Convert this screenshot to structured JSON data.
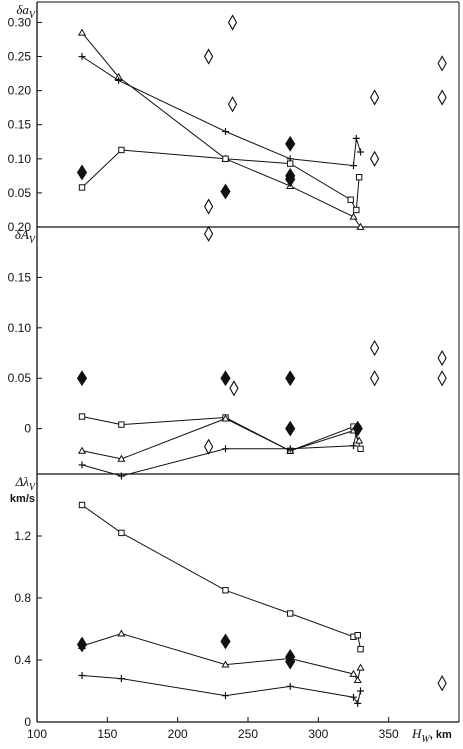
{
  "figure": {
    "x_axis": {
      "label": "H",
      "label_sub": "W",
      "unit": ", km",
      "range": [
        100,
        400
      ],
      "ticks": [
        "100",
        "150",
        "200",
        "250",
        "300",
        "350"
      ]
    },
    "colors": {
      "ink": "#111111",
      "background": "#ffffff"
    }
  },
  "chart_data": [
    {
      "type": "line",
      "ylabel": "δa",
      "ylabel_sub": "V",
      "ylabel_unit": "",
      "ylim": [
        0,
        0.33
      ],
      "yticks": [
        "0.05",
        "0.10",
        "0.15",
        "0.20",
        "0.25",
        "0.30"
      ],
      "grid": false,
      "series": [
        {
          "marker": "triangle",
          "x": [
            132,
            158,
            234,
            280,
            325,
            330
          ],
          "y": [
            0.285,
            0.22,
            0.1,
            0.06,
            0.015,
            0.0
          ]
        },
        {
          "marker": "plus",
          "x": [
            132,
            158,
            234,
            280,
            325,
            327,
            330
          ],
          "y": [
            0.25,
            0.215,
            0.14,
            0.1,
            0.09,
            0.13,
            0.11
          ]
        },
        {
          "marker": "square",
          "x": [
            132,
            160,
            234,
            280,
            323,
            327,
            329
          ],
          "y": [
            0.058,
            0.113,
            0.1,
            0.093,
            0.04,
            0.025,
            0.073
          ]
        },
        {
          "marker": "diamond-filled",
          "x": [
            132,
            234,
            280,
            280,
            280
          ],
          "y": [
            0.08,
            0.052,
            0.122,
            0.07,
            0.075
          ]
        },
        {
          "marker": "diamond-open",
          "x": [
            222,
            239,
            222,
            239,
            222,
            340,
            340,
            388,
            388
          ],
          "y": [
            0.25,
            0.3,
            0.03,
            0.18,
            -0.01,
            0.19,
            0.1,
            0.24,
            0.19
          ]
        }
      ]
    },
    {
      "type": "line",
      "ylabel": "δA",
      "ylabel_sub": "V",
      "ylabel_unit": "",
      "ylim": [
        -0.045,
        0.2
      ],
      "yticks": [
        "0",
        "0.05",
        "0.10",
        "0.15",
        "0.20"
      ],
      "grid": false,
      "series": [
        {
          "marker": "square",
          "x": [
            132,
            160,
            234,
            280,
            325,
            330
          ],
          "y": [
            0.012,
            0.004,
            0.011,
            -0.022,
            0.002,
            -0.02
          ]
        },
        {
          "marker": "triangle",
          "x": [
            132,
            160,
            234,
            280,
            325,
            329
          ],
          "y": [
            -0.022,
            -0.03,
            0.01,
            -0.022,
            -0.002,
            -0.012
          ]
        },
        {
          "marker": "plus",
          "x": [
            132,
            160,
            234,
            280,
            325,
            328
          ],
          "y": [
            -0.036,
            -0.047,
            -0.02,
            -0.02,
            -0.017,
            0.003
          ]
        },
        {
          "marker": "diamond-filled",
          "x": [
            132,
            234,
            280,
            280,
            328
          ],
          "y": [
            0.05,
            0.05,
            0.05,
            0.0,
            0.0
          ]
        },
        {
          "marker": "diamond-open",
          "x": [
            222,
            240,
            340,
            340,
            388,
            388
          ],
          "y": [
            -0.018,
            0.04,
            0.08,
            0.05,
            0.07,
            0.05
          ]
        }
      ]
    },
    {
      "type": "line",
      "ylabel": "Δλ",
      "ylabel_sub": "V",
      "ylabel_unit": "km/s",
      "ylim": [
        0,
        1.6
      ],
      "yticks": [
        "0",
        "0.4",
        "0.8",
        "1.2"
      ],
      "grid": false,
      "series": [
        {
          "marker": "square",
          "x": [
            132,
            160,
            234,
            280,
            325,
            328,
            330
          ],
          "y": [
            1.4,
            1.22,
            0.85,
            0.7,
            0.55,
            0.56,
            0.47
          ]
        },
        {
          "marker": "triangle",
          "x": [
            132,
            160,
            234,
            280,
            325,
            328,
            330
          ],
          "y": [
            0.49,
            0.57,
            0.37,
            0.41,
            0.31,
            0.27,
            0.35
          ]
        },
        {
          "marker": "plus",
          "x": [
            132,
            160,
            234,
            280,
            325,
            328,
            330
          ],
          "y": [
            0.3,
            0.28,
            0.17,
            0.23,
            0.16,
            0.12,
            0.2
          ]
        },
        {
          "marker": "diamond-filled",
          "x": [
            132,
            234,
            280,
            280
          ],
          "y": [
            0.5,
            0.52,
            0.42,
            0.39
          ]
        },
        {
          "marker": "diamond-open",
          "x": [
            388
          ],
          "y": [
            0.25
          ]
        }
      ]
    }
  ]
}
